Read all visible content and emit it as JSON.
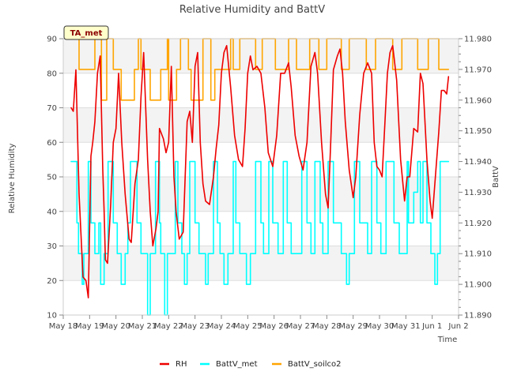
{
  "chart_data": {
    "type": "line",
    "title": "Relative Humidity and BattV",
    "xlabel": "Time",
    "ylabel_left": "Relative Humidity",
    "ylabel_right": "BattV",
    "badge": "TA_met",
    "x_ticks": [
      "May 18",
      "May 19",
      "May 20",
      "May 21",
      "May 22",
      "May 23",
      "May 24",
      "May 25",
      "May 26",
      "May 27",
      "May 28",
      "May 29",
      "May 30",
      "May 31",
      "Jun 1",
      "Jun 2"
    ],
    "xlim": [
      0,
      15
    ],
    "y_left_ticks": [
      10,
      20,
      30,
      40,
      50,
      60,
      70,
      80,
      90
    ],
    "ylim_left": [
      10,
      90
    ],
    "y_right_ticks": [
      "11.890",
      "11.900",
      "11.910",
      "11.920",
      "11.930",
      "11.940",
      "11.950",
      "11.960",
      "11.970",
      "11.980"
    ],
    "ylim_right": [
      11.89,
      11.98
    ],
    "grid": "horizontal",
    "band_colors": [
      "#f3f3f3",
      "#ffffff"
    ],
    "legend_placement": "bottom-center",
    "series": [
      {
        "name": "RH",
        "color": "#ee0000",
        "axis": "left",
        "x": [
          0.3,
          0.38,
          0.48,
          0.6,
          0.75,
          0.86,
          0.95,
          1.05,
          1.12,
          1.2,
          1.3,
          1.4,
          1.5,
          1.55,
          1.6,
          1.68,
          1.8,
          1.9,
          2.0,
          2.1,
          2.22,
          2.35,
          2.5,
          2.58,
          2.72,
          2.85,
          2.95,
          3.05,
          3.2,
          3.3,
          3.4,
          3.52,
          3.6,
          3.65,
          3.8,
          3.9,
          4.0,
          4.1,
          4.2,
          4.28,
          4.4,
          4.55,
          4.7,
          4.8,
          4.9,
          5.0,
          5.1,
          5.2,
          5.3,
          5.4,
          5.55,
          5.7,
          5.8,
          5.9,
          6.0,
          6.1,
          6.2,
          6.35,
          6.5,
          6.65,
          6.8,
          6.9,
          7.0,
          7.1,
          7.2,
          7.35,
          7.5,
          7.65,
          7.78,
          7.95,
          8.1,
          8.25,
          8.4,
          8.55,
          8.65,
          8.8,
          8.95,
          9.1,
          9.25,
          9.4,
          9.55,
          9.65,
          9.8,
          9.95,
          10.05,
          10.15,
          10.25,
          10.4,
          10.5,
          10.6,
          10.7,
          10.85,
          11.0,
          11.1,
          11.25,
          11.4,
          11.55,
          11.7,
          11.8,
          11.9,
          12.0,
          12.1,
          12.2,
          12.3,
          12.4,
          12.5,
          12.65,
          12.8,
          12.95,
          13.05,
          13.15,
          13.3,
          13.45,
          13.55,
          13.65,
          13.8,
          13.92,
          14.0,
          14.1,
          14.25,
          14.35,
          14.45,
          14.55,
          14.62
        ],
        "y": [
          70,
          69,
          81,
          45,
          21,
          20,
          15,
          56,
          60,
          66,
          80,
          85,
          52,
          40,
          26,
          25,
          42,
          60,
          64,
          80,
          60,
          45,
          32,
          31,
          48,
          55,
          73,
          86,
          55,
          40,
          30,
          35,
          40,
          64,
          61,
          57,
          60,
          82,
          50,
          40,
          32,
          34,
          66,
          69,
          60,
          82,
          86,
          60,
          48,
          43,
          42,
          50,
          58,
          65,
          80,
          86,
          88,
          76,
          62,
          55,
          53,
          64,
          80,
          85,
          81,
          82,
          80,
          70,
          57,
          53,
          62,
          80,
          80,
          83,
          76,
          62,
          56,
          52,
          60,
          82,
          86,
          80,
          60,
          45,
          41,
          60,
          81,
          85,
          87,
          80,
          66,
          52,
          44,
          50,
          68,
          80,
          83,
          80,
          60,
          53,
          52,
          50,
          65,
          80,
          86,
          88,
          78,
          55,
          43,
          50,
          50,
          64,
          63,
          80,
          77,
          55,
          43,
          38,
          48,
          63,
          75,
          75,
          74,
          79
        ]
      },
      {
        "name": "BattV_met",
        "color": "#00ffff",
        "axis": "right",
        "x": [
          0.3,
          0.52,
          0.52,
          0.58,
          0.58,
          0.72,
          0.72,
          0.78,
          0.78,
          0.95,
          0.95,
          1.05,
          1.05,
          1.2,
          1.2,
          1.35,
          1.35,
          1.42,
          1.42,
          1.55,
          1.55,
          1.7,
          1.7,
          1.9,
          1.9,
          2.05,
          2.05,
          2.2,
          2.2,
          2.35,
          2.35,
          2.45,
          2.45,
          2.55,
          2.55,
          2.8,
          2.8,
          2.95,
          2.95,
          3.2,
          3.2,
          3.3,
          3.3,
          3.5,
          3.5,
          3.65,
          3.65,
          3.7,
          3.7,
          3.85,
          3.85,
          3.95,
          3.95,
          4.25,
          4.25,
          4.35,
          4.35,
          4.5,
          4.5,
          4.6,
          4.6,
          4.7,
          4.7,
          4.8,
          4.8,
          5.0,
          5.0,
          5.15,
          5.15,
          5.4,
          5.4,
          5.5,
          5.5,
          5.7,
          5.7,
          5.85,
          5.85,
          5.95,
          5.95,
          6.1,
          6.1,
          6.25,
          6.25,
          6.45,
          6.45,
          6.55,
          6.55,
          6.7,
          6.7,
          6.95,
          6.95,
          7.1,
          7.1,
          7.3,
          7.3,
          7.5,
          7.5,
          7.6,
          7.6,
          7.8,
          7.8,
          7.95,
          7.95,
          8.15,
          8.15,
          8.35,
          8.35,
          8.5,
          8.5,
          8.65,
          8.65,
          9.05,
          9.05,
          9.25,
          9.25,
          9.4,
          9.4,
          9.55,
          9.55,
          9.75,
          9.75,
          9.85,
          9.85,
          10.05,
          10.05,
          10.25,
          10.25,
          10.55,
          10.55,
          10.75,
          10.75,
          10.85,
          10.85,
          11.05,
          11.05,
          11.25,
          11.25,
          11.55,
          11.55,
          11.7,
          11.7,
          11.9,
          11.9,
          12.05,
          12.05,
          12.25,
          12.25,
          12.55,
          12.55,
          12.75,
          12.75,
          13.05,
          13.05,
          13.1,
          13.1,
          13.3,
          13.3,
          13.45,
          13.45,
          13.55,
          13.55,
          13.65,
          13.65,
          13.8,
          13.8,
          13.95,
          13.95,
          14.1,
          14.1,
          14.2,
          14.2,
          14.3,
          14.3,
          14.62
        ],
        "y": [
          11.94,
          11.94,
          11.92,
          11.92,
          11.91,
          11.91,
          11.9,
          11.9,
          11.91,
          11.91,
          11.94,
          11.94,
          11.92,
          11.92,
          11.91,
          11.91,
          11.92,
          11.92,
          11.9,
          11.9,
          11.91,
          11.91,
          11.94,
          11.94,
          11.92,
          11.92,
          11.91,
          11.91,
          11.9,
          11.9,
          11.91,
          11.91,
          11.92,
          11.92,
          11.94,
          11.94,
          11.92,
          11.92,
          11.91,
          11.91,
          11.89,
          11.89,
          11.91,
          11.91,
          11.94,
          11.94,
          11.92,
          11.92,
          11.91,
          11.91,
          11.89,
          11.89,
          11.91,
          11.91,
          11.94,
          11.94,
          11.92,
          11.92,
          11.91,
          11.91,
          11.9,
          11.9,
          11.91,
          11.91,
          11.94,
          11.94,
          11.92,
          11.92,
          11.91,
          11.91,
          11.9,
          11.9,
          11.91,
          11.91,
          11.94,
          11.94,
          11.92,
          11.92,
          11.91,
          11.91,
          11.9,
          11.9,
          11.91,
          11.91,
          11.94,
          11.94,
          11.92,
          11.92,
          11.91,
          11.91,
          11.9,
          11.9,
          11.91,
          11.91,
          11.94,
          11.94,
          11.92,
          11.92,
          11.91,
          11.91,
          11.94,
          11.94,
          11.92,
          11.92,
          11.91,
          11.91,
          11.94,
          11.94,
          11.92,
          11.92,
          11.91,
          11.91,
          11.94,
          11.94,
          11.92,
          11.92,
          11.91,
          11.91,
          11.94,
          11.94,
          11.92,
          11.92,
          11.91,
          11.91,
          11.94,
          11.94,
          11.92,
          11.92,
          11.91,
          11.91,
          11.9,
          11.9,
          11.91,
          11.91,
          11.94,
          11.94,
          11.92,
          11.92,
          11.91,
          11.91,
          11.94,
          11.94,
          11.92,
          11.92,
          11.91,
          11.91,
          11.94,
          11.94,
          11.92,
          11.92,
          11.91,
          11.91,
          11.94,
          11.94,
          11.92,
          11.92,
          11.93,
          11.93,
          11.94,
          11.94,
          11.92,
          11.92,
          11.94,
          11.94,
          11.92,
          11.92,
          11.91,
          11.91,
          11.9,
          11.9,
          11.91,
          11.91,
          11.94,
          11.94
        ]
      },
      {
        "name": "BattV_soilco2",
        "color": "#ffa500",
        "axis": "right",
        "x": [
          0.3,
          0.6,
          0.6,
          1.2,
          1.2,
          1.45,
          1.45,
          1.65,
          1.65,
          1.9,
          1.9,
          2.2,
          2.2,
          2.7,
          2.7,
          2.85,
          2.85,
          2.95,
          2.95,
          3.3,
          3.3,
          3.7,
          3.7,
          3.95,
          3.95,
          4.0,
          4.0,
          4.3,
          4.3,
          4.45,
          4.45,
          4.75,
          4.75,
          4.85,
          4.85,
          5.3,
          5.3,
          5.6,
          5.6,
          5.75,
          5.75,
          6.35,
          6.35,
          6.45,
          6.45,
          6.7,
          6.7,
          7.3,
          7.3,
          7.55,
          7.55,
          8.05,
          8.05,
          8.55,
          8.55,
          8.85,
          8.85,
          9.35,
          9.35,
          9.7,
          9.7,
          10.0,
          10.0,
          10.55,
          10.55,
          10.85,
          10.85,
          11.5,
          11.5,
          11.85,
          11.85,
          12.5,
          12.5,
          12.85,
          12.85,
          13.45,
          13.45,
          13.85,
          13.85,
          14.25,
          14.25,
          14.62
        ],
        "y": [
          11.98,
          11.98,
          11.97,
          11.97,
          11.98,
          11.98,
          11.96,
          11.96,
          11.98,
          11.98,
          11.97,
          11.97,
          11.96,
          11.96,
          11.97,
          11.97,
          11.98,
          11.98,
          11.97,
          11.97,
          11.96,
          11.96,
          11.97,
          11.97,
          11.98,
          11.98,
          11.96,
          11.96,
          11.97,
          11.97,
          11.98,
          11.98,
          11.97,
          11.97,
          11.96,
          11.96,
          11.98,
          11.98,
          11.96,
          11.96,
          11.97,
          11.97,
          11.98,
          11.98,
          11.97,
          11.97,
          11.98,
          11.98,
          11.97,
          11.97,
          11.98,
          11.98,
          11.97,
          11.97,
          11.98,
          11.98,
          11.97,
          11.97,
          11.98,
          11.98,
          11.97,
          11.97,
          11.98,
          11.98,
          11.97,
          11.97,
          11.98,
          11.98,
          11.97,
          11.97,
          11.98,
          11.98,
          11.97,
          11.97,
          11.98,
          11.98,
          11.97,
          11.97,
          11.98,
          11.98,
          11.97,
          11.97
        ]
      }
    ]
  }
}
